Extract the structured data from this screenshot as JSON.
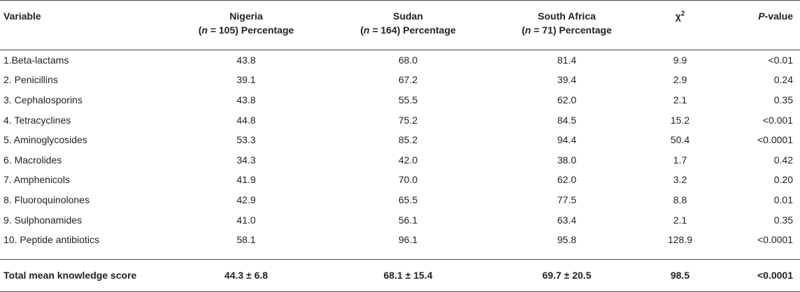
{
  "table": {
    "headers": {
      "variable": "Variable",
      "nigeria": {
        "country": "Nigeria",
        "n_prefix": "(",
        "n_letter": "n",
        "n_suffix": " = 105) Percentage"
      },
      "sudan": {
        "country": "Sudan",
        "n_prefix": "(",
        "n_letter": "n",
        "n_suffix": " = 164) Percentage"
      },
      "south_africa": {
        "country": "South Africa",
        "n_prefix": "(",
        "n_letter": "n",
        "n_suffix": " = 71) Percentage"
      },
      "chi": {
        "symbol": "χ",
        "superscript": "2"
      },
      "pvalue": {
        "p": "P",
        "rest": "-value"
      }
    },
    "rows": [
      {
        "variable": "1.Beta-lactams",
        "nigeria": "43.8",
        "sudan": "68.0",
        "south_africa": "81.4",
        "chi": "9.9",
        "pvalue": "<0.01"
      },
      {
        "variable": "2. Penicillins",
        "nigeria": "39.1",
        "sudan": "67.2",
        "south_africa": "39.4",
        "chi": "2.9",
        "pvalue": "0.24"
      },
      {
        "variable": "3. Cephalosporins",
        "nigeria": "43.8",
        "sudan": "55.5",
        "south_africa": "62.0",
        "chi": "2.1",
        "pvalue": "0.35"
      },
      {
        "variable": "4. Tetracyclines",
        "nigeria": "44.8",
        "sudan": "75.2",
        "south_africa": "84.5",
        "chi": "15.2",
        "pvalue": "<0.001"
      },
      {
        "variable": "5. Aminoglycosides",
        "nigeria": "53.3",
        "sudan": "85.2",
        "south_africa": "94.4",
        "chi": "50.4",
        "pvalue": "<0.0001"
      },
      {
        "variable": "6. Macrolides",
        "nigeria": "34.3",
        "sudan": "42.0",
        "south_africa": "38.0",
        "chi": "1.7",
        "pvalue": "0.42"
      },
      {
        "variable": "7. Amphenicols",
        "nigeria": "41.9",
        "sudan": "70.0",
        "south_africa": "62.0",
        "chi": "3.2",
        "pvalue": "0.20"
      },
      {
        "variable": "8. Fluoroquinolones",
        "nigeria": "42.9",
        "sudan": "65.5",
        "south_africa": "77.5",
        "chi": "8.8",
        "pvalue": "0.01"
      },
      {
        "variable": "9. Sulphonamides",
        "nigeria": "41.0",
        "sudan": "56.1",
        "south_africa": "63.4",
        "chi": "2.1",
        "pvalue": "0.35"
      },
      {
        "variable": "10. Peptide antibiotics",
        "nigeria": "58.1",
        "sudan": "96.1",
        "south_africa": "95.8",
        "chi": "128.9",
        "pvalue": "<0.0001"
      }
    ],
    "total": {
      "variable": "Total mean knowledge score",
      "nigeria": "44.3 ± 6.8",
      "sudan": "68.1 ± 15.4",
      "south_africa": "69.7 ± 20.5",
      "chi": "98.5",
      "pvalue": "<0.0001"
    }
  }
}
